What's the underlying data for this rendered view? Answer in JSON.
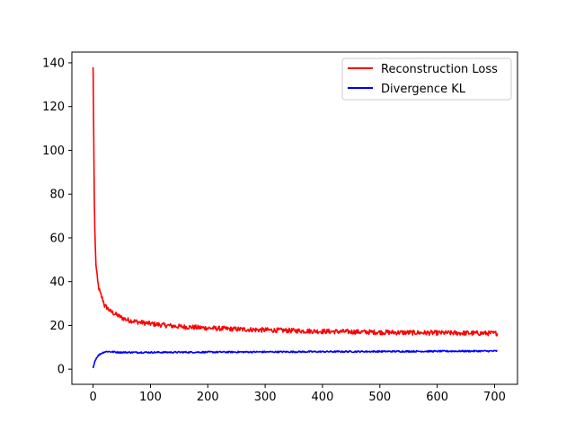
{
  "chart_data": {
    "type": "line",
    "title": "",
    "xlabel": "",
    "ylabel": "",
    "xlim": [
      -37,
      740
    ],
    "ylim": [
      -6.9,
      144.9
    ],
    "x_ticks": [
      0,
      100,
      200,
      300,
      400,
      500,
      600,
      700
    ],
    "y_ticks": [
      0,
      20,
      40,
      60,
      80,
      100,
      120,
      140
    ],
    "grid": false,
    "legend_position": "top-right",
    "series": [
      {
        "name": "Reconstruction Loss",
        "color": "#ff0000",
        "x": [
          0,
          1,
          2,
          3,
          4,
          5,
          6,
          8,
          10,
          12,
          15,
          18,
          20,
          25,
          30,
          40,
          50,
          60,
          80,
          100,
          120,
          150,
          200,
          250,
          300,
          350,
          400,
          450,
          500,
          550,
          600,
          650,
          700,
          705
        ],
        "y": [
          138,
          110,
          80,
          64,
          55,
          48,
          45,
          40,
          37,
          35,
          33,
          31,
          29,
          28,
          26.5,
          25,
          23.5,
          22.5,
          21.5,
          20.8,
          20.2,
          19.5,
          18.8,
          18.3,
          17.9,
          17.6,
          17.3,
          17.1,
          16.9,
          16.7,
          16.6,
          16.5,
          16.4,
          16.4
        ],
        "noise": 1.1
      },
      {
        "name": "Divergence KL",
        "color": "#0000ff",
        "x": [
          0,
          1,
          2,
          3,
          5,
          8,
          12,
          16,
          20,
          25,
          30,
          40,
          50,
          100,
          200,
          300,
          400,
          500,
          600,
          700,
          705
        ],
        "y": [
          0.5,
          1.5,
          2.5,
          3.5,
          4.8,
          6.0,
          6.9,
          7.5,
          7.9,
          8.1,
          8.0,
          7.8,
          7.7,
          7.7,
          7.8,
          7.9,
          8.0,
          8.1,
          8.2,
          8.3,
          8.3
        ],
        "noise": 0.35
      }
    ]
  }
}
